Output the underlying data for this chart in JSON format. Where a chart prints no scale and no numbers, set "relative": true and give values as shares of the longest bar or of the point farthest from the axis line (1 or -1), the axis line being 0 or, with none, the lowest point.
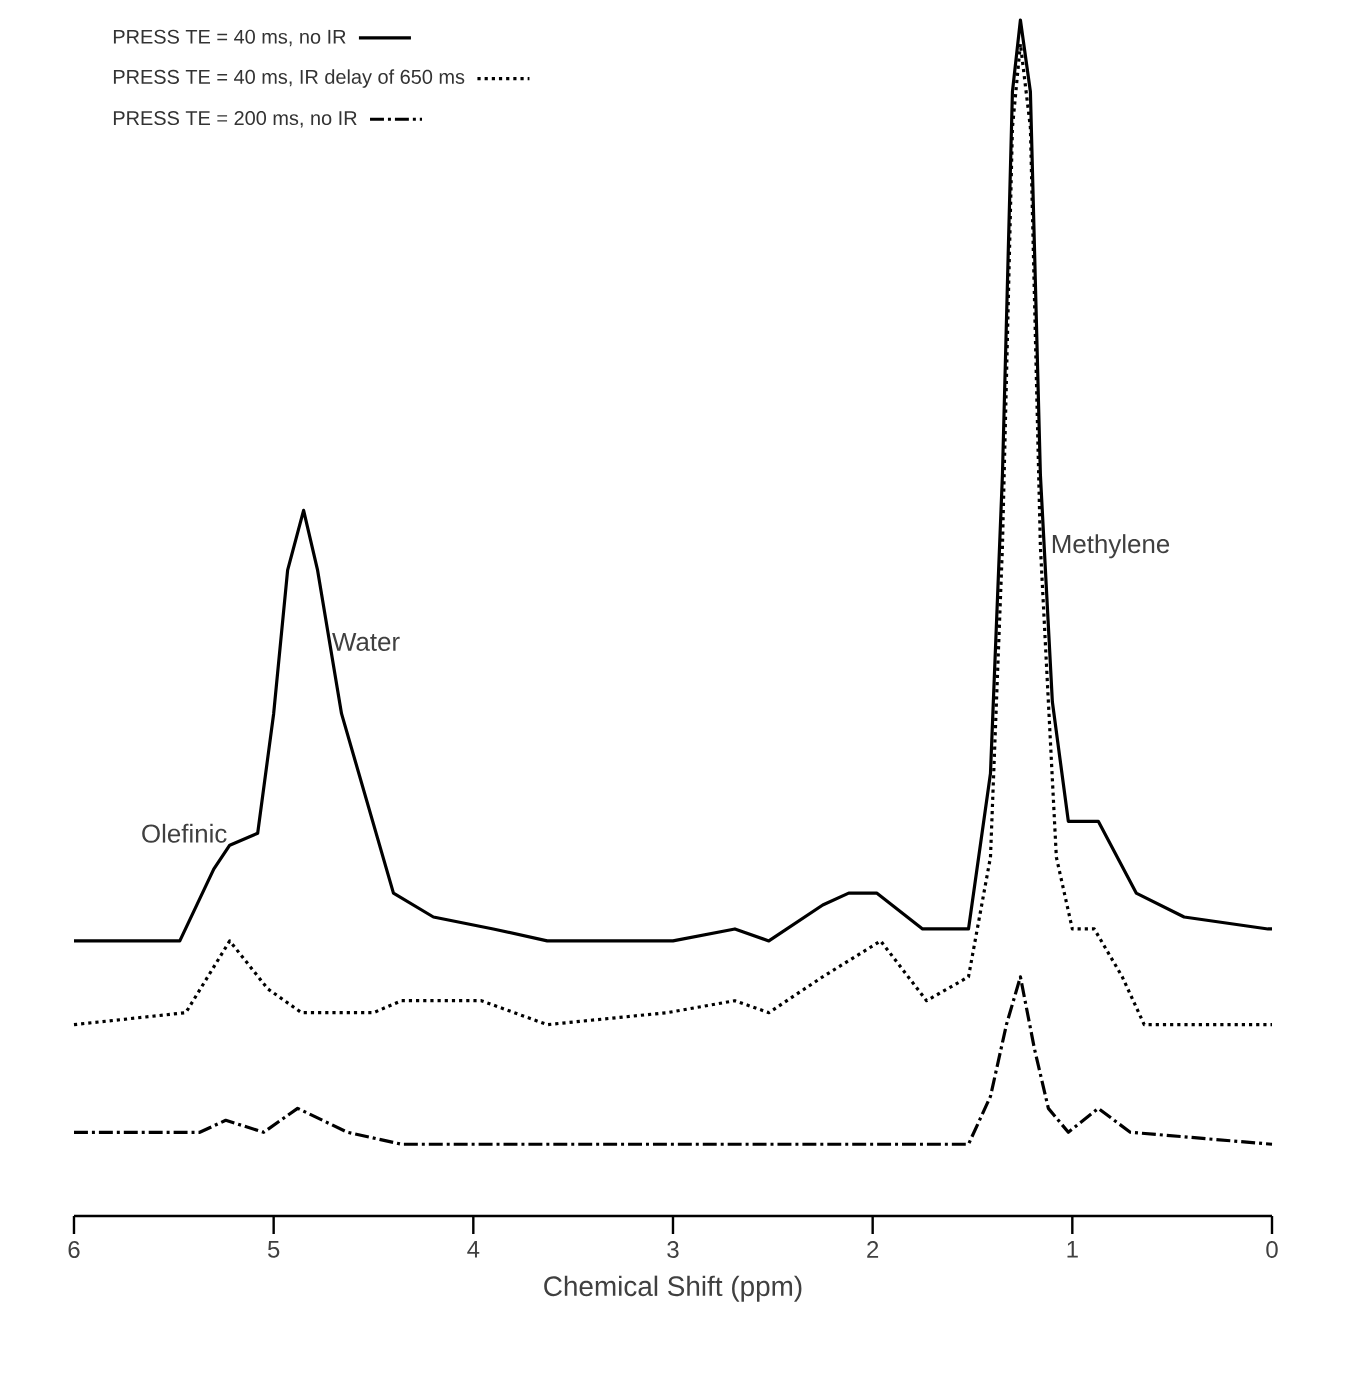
{
  "chart_data": {
    "type": "line",
    "relative": true,
    "xlabel": "Chemical Shift (ppm)",
    "xlim": [
      6,
      0
    ],
    "xticks": [
      6,
      5,
      4,
      3,
      2,
      1,
      0
    ],
    "legend": "top left",
    "grid": false,
    "marker": "none",
    "annotations": [
      {
        "text": "Olefinic",
        "x": 5.22,
        "y": 0.31
      },
      {
        "text": "Water",
        "x": 4.72,
        "y": 0.48
      },
      {
        "text": "Methylene",
        "x": 1.12,
        "y": 0.56
      }
    ],
    "series": [
      {
        "name": "PRESS TE = 40 ms, no IR",
        "color": "#000000",
        "line_style": "solid",
        "x": [
          6.0,
          5.47,
          5.3,
          5.22,
          5.08,
          5.0,
          4.93,
          4.85,
          4.78,
          4.66,
          4.4,
          4.2,
          3.9,
          3.63,
          3.0,
          2.69,
          2.52,
          2.25,
          2.12,
          1.98,
          1.75,
          1.52,
          1.41,
          1.35,
          1.3,
          1.26,
          1.21,
          1.16,
          1.1,
          1.02,
          0.87,
          0.68,
          0.44,
          0.02,
          0.0
        ],
        "values": [
          0.23,
          0.23,
          0.29,
          0.31,
          0.32,
          0.42,
          0.54,
          0.59,
          0.54,
          0.42,
          0.27,
          0.25,
          0.24,
          0.23,
          0.23,
          0.24,
          0.23,
          0.26,
          0.27,
          0.27,
          0.24,
          0.24,
          0.37,
          0.62,
          0.94,
          1.0,
          0.94,
          0.62,
          0.43,
          0.33,
          0.33,
          0.27,
          0.25,
          0.24,
          0.24
        ]
      },
      {
        "name": "PRESS TE = 40 ms, IR delay of 650 ms",
        "color": "#000000",
        "line_style": "dotted",
        "x": [
          6.0,
          5.44,
          5.22,
          5.03,
          4.86,
          4.5,
          4.36,
          3.96,
          3.63,
          3.03,
          2.69,
          2.52,
          2.25,
          1.96,
          1.73,
          1.52,
          1.41,
          1.35,
          1.3,
          1.26,
          1.21,
          1.16,
          1.08,
          1.0,
          0.89,
          0.75,
          0.64,
          0.0
        ],
        "values": [
          0.16,
          0.17,
          0.23,
          0.19,
          0.17,
          0.17,
          0.18,
          0.18,
          0.16,
          0.17,
          0.18,
          0.17,
          0.2,
          0.23,
          0.18,
          0.2,
          0.3,
          0.56,
          0.91,
          0.98,
          0.91,
          0.56,
          0.3,
          0.24,
          0.24,
          0.2,
          0.16,
          0.16
        ]
      },
      {
        "name": "PRESS TE = 200 ms, no IR",
        "color": "#000000",
        "line_style": "dashdot",
        "x": [
          6.0,
          5.37,
          5.24,
          5.05,
          4.88,
          4.63,
          4.36,
          3.0,
          1.52,
          1.41,
          1.33,
          1.26,
          1.19,
          1.12,
          1.02,
          0.87,
          0.71,
          0.0
        ],
        "values": [
          0.07,
          0.07,
          0.08,
          0.07,
          0.09,
          0.07,
          0.06,
          0.06,
          0.06,
          0.1,
          0.16,
          0.2,
          0.14,
          0.09,
          0.07,
          0.09,
          0.07,
          0.06
        ]
      }
    ]
  }
}
